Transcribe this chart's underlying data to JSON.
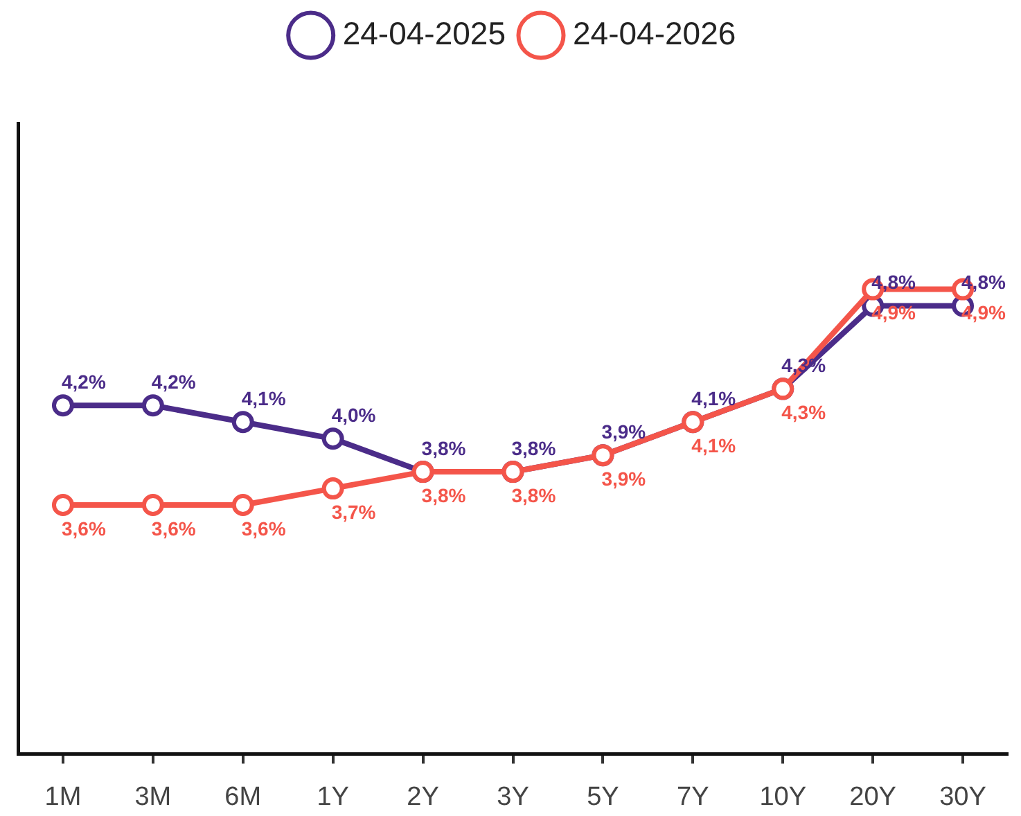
{
  "chart_data": {
    "type": "line",
    "categories": [
      "1M",
      "3M",
      "6M",
      "1Y",
      "2Y",
      "3Y",
      "5Y",
      "7Y",
      "10Y",
      "20Y",
      "30Y"
    ],
    "series": [
      {
        "name": "24-04-2025",
        "color": "#4b2c89",
        "values": [
          4.2,
          4.2,
          4.1,
          4.0,
          3.8,
          3.8,
          3.9,
          4.1,
          4.3,
          4.8,
          4.8
        ],
        "value_labels": [
          "4,2%",
          "4,2%",
          "4,1%",
          "4,0%",
          "3,8%",
          "3,8%",
          "3,9%",
          "4,1%",
          "4,3%",
          "4,8%",
          "4,8%"
        ]
      },
      {
        "name": "24-04-2026",
        "color": "#f4554a",
        "values": [
          3.6,
          3.6,
          3.6,
          3.7,
          3.8,
          3.8,
          3.9,
          4.1,
          4.3,
          4.9,
          4.9
        ],
        "value_labels": [
          "3,6%",
          "3,6%",
          "3,6%",
          "3,7%",
          "3,8%",
          "3,8%",
          "3,9%",
          "4,1%",
          "4,3%",
          "4,9%",
          "4,9%"
        ]
      }
    ],
    "ylim": [
      2.1,
      5.9
    ],
    "tick_labels": "x",
    "legend": "top",
    "marker": "circle"
  }
}
